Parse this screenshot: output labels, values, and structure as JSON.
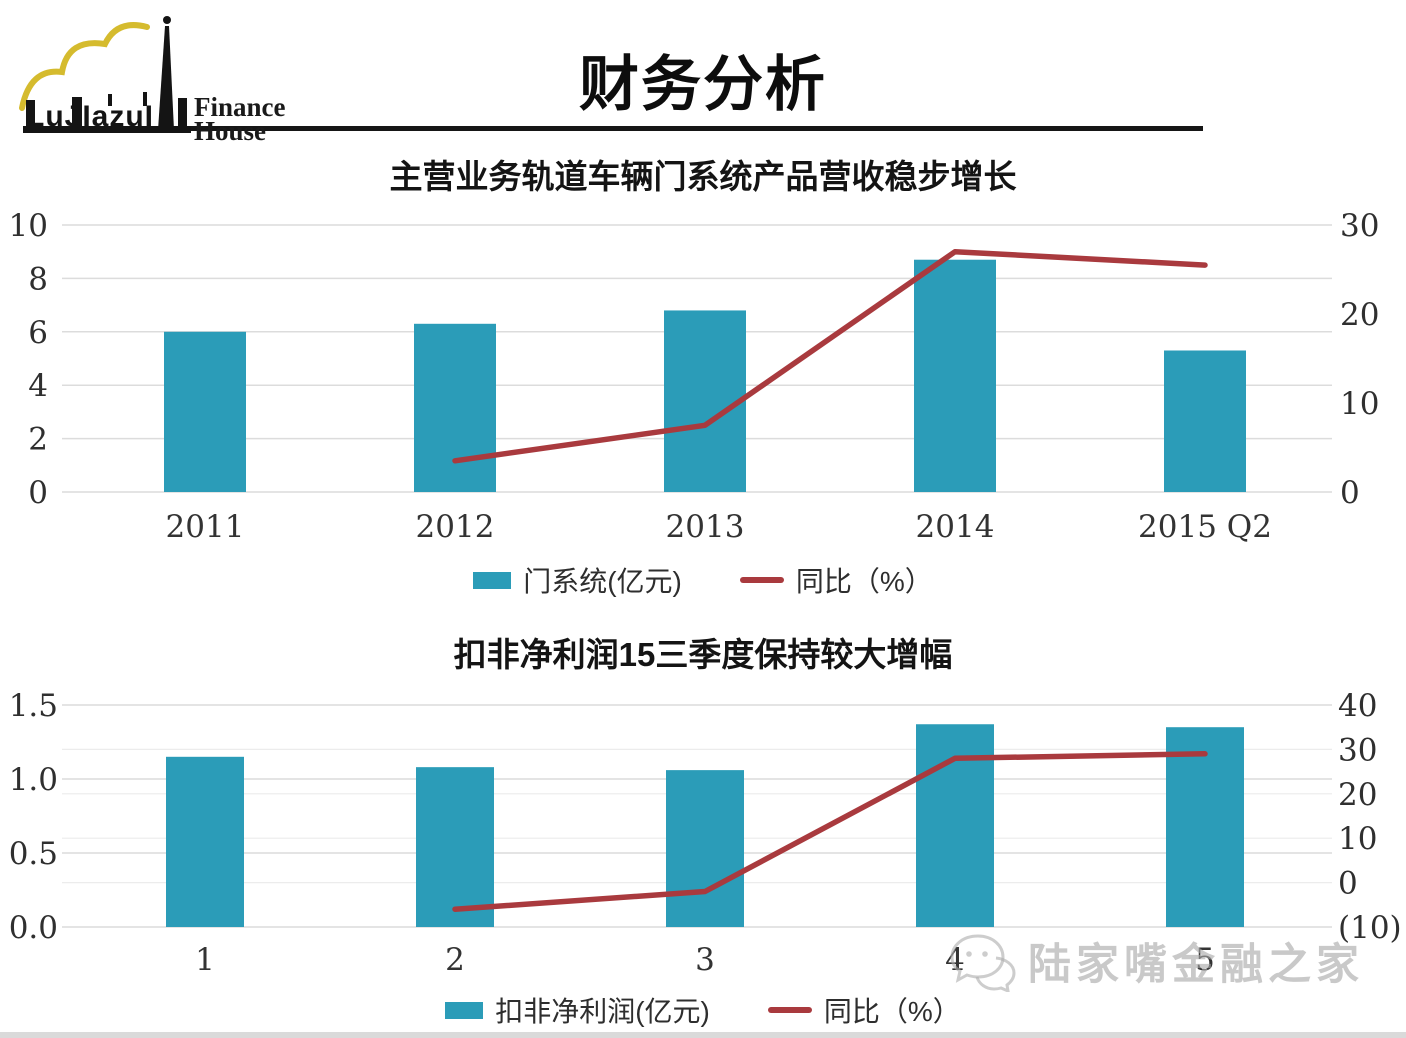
{
  "header": {
    "title": "财务分析",
    "logo": {
      "mark": "LuJIazuI",
      "line1": "Finance",
      "line2": "House"
    }
  },
  "watermark": {
    "text": "陆家嘴金融之家",
    "icon": "wechat-bubbles-icon"
  },
  "colors": {
    "bar": "#2b9cb8",
    "line": "#a93a3e",
    "grid": "#dcdcdc",
    "grid_faint": "#ececec",
    "axis_text": "#2f2f2f",
    "negative_label": "#cc3340",
    "watermark": "#bfbfbf"
  },
  "chart_data": [
    {
      "type": "bar+line",
      "title": "主营业务轨道车辆门系统产品营收稳步增长",
      "categories": [
        "2011",
        "2012",
        "2013",
        "2014",
        "2015 Q2"
      ],
      "series": [
        {
          "name": "门系统(亿元)",
          "type": "bar",
          "axis": "left",
          "values": [
            6.0,
            6.3,
            6.8,
            8.7,
            5.3
          ]
        },
        {
          "name": "同比（%）",
          "type": "line",
          "axis": "right",
          "values": [
            null,
            3.5,
            7.5,
            27,
            25.5
          ]
        }
      ],
      "left_axis": {
        "range": [
          0,
          10
        ],
        "ticks": [
          0,
          2,
          4,
          6,
          8,
          10
        ],
        "labels": [
          "0",
          "2",
          "4",
          "6",
          "8",
          "10"
        ]
      },
      "right_axis": {
        "range": [
          0,
          30
        ],
        "ticks": [
          0,
          10,
          20,
          30
        ],
        "labels": [
          "0",
          "10",
          "20",
          "30"
        ]
      },
      "grid": "left-ticks",
      "legend_position": "bottom"
    },
    {
      "type": "bar+line",
      "title": "扣非净利润15三季度保持较大增幅",
      "categories": [
        "1",
        "2",
        "3",
        "4",
        "5"
      ],
      "series": [
        {
          "name": "扣非净利润(亿元)",
          "type": "bar",
          "axis": "left",
          "values": [
            1.15,
            1.08,
            1.06,
            1.37,
            1.35
          ]
        },
        {
          "name": "同比（%）",
          "type": "line",
          "axis": "right",
          "values": [
            null,
            -6,
            -2,
            28,
            29
          ]
        }
      ],
      "left_axis": {
        "range": [
          0,
          1.5
        ],
        "ticks": [
          0,
          0.5,
          1,
          1.5
        ],
        "labels": [
          "0.0",
          "0.5",
          "1.0",
          "1.5"
        ]
      },
      "right_axis": {
        "range": [
          -10,
          40
        ],
        "ticks": [
          -10,
          0,
          10,
          20,
          30,
          40
        ],
        "labels": [
          "(10)",
          "0",
          "10",
          "20",
          "30",
          "40"
        ],
        "negative_label_index": 0
      },
      "grid": "left-and-right-ticks",
      "legend_position": "bottom"
    }
  ]
}
